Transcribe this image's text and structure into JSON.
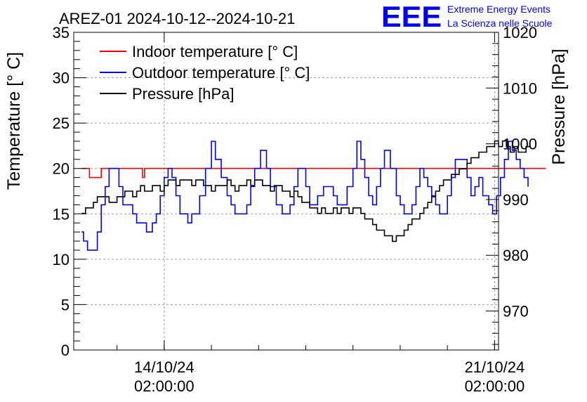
{
  "chart_data": {
    "type": "line",
    "title": "AREZ-01 2024-10-12--2024-10-21",
    "ylabel_left": "Temperature [° C]",
    "ylabel_right": "Pressure [hPa]",
    "x_range_hours": [
      0,
      216
    ],
    "x_ticks": [
      {
        "hours": 46,
        "date": "14/10/24",
        "time": "02:00:00"
      },
      {
        "hours": 214,
        "date": "21/10/24",
        "time": "02:00:00"
      }
    ],
    "ylim_left": [
      0,
      35
    ],
    "ylim_right": [
      963,
      1020
    ],
    "yticks_left": [
      "0",
      "5",
      "10",
      "15",
      "20",
      "25",
      "30",
      "35"
    ],
    "yticks_right": [
      "970",
      "980",
      "990",
      "1000",
      "1010",
      "1020"
    ],
    "grid": true,
    "legend": {
      "placement": "top-left",
      "entries": [
        {
          "label": "Indoor temperature [° C]",
          "color": "#ff0000"
        },
        {
          "label": "Outdoor temperature [° C]",
          "color": "#0000ff"
        },
        {
          "label": "Pressure [hPa]",
          "color": "#000000"
        }
      ]
    },
    "series": [
      {
        "name": "Indoor temperature [° C]",
        "axis": "left",
        "color": "#ff0000",
        "x": [
          4,
          7,
          8,
          13,
          14,
          15,
          34,
          35,
          36,
          37,
          240
        ],
        "values": [
          20,
          20,
          19,
          19,
          20,
          20,
          20,
          19,
          20,
          20,
          20
        ]
      },
      {
        "name": "Outdoor temperature [° C]",
        "axis": "left",
        "color": "#0000ff",
        "x": [
          4,
          5,
          7,
          10,
          12,
          14,
          16,
          18,
          21,
          23,
          25,
          30,
          32,
          34,
          36,
          37,
          40,
          42,
          44,
          46,
          48,
          50,
          52,
          54,
          56,
          58,
          60,
          62,
          64,
          67,
          70,
          72,
          75,
          78,
          80,
          82,
          85,
          88,
          90,
          92,
          95,
          98,
          100,
          103,
          106,
          108,
          110,
          112,
          114,
          116,
          118,
          120,
          122,
          124,
          127,
          130,
          132,
          134,
          136,
          139,
          142,
          144,
          146,
          148,
          150,
          152,
          154,
          156,
          158,
          161,
          164,
          166,
          168,
          170,
          172,
          174,
          176,
          178,
          180,
          182,
          184,
          186,
          188,
          190,
          192,
          194,
          196,
          198,
          200,
          202,
          204,
          206,
          208,
          211,
          213,
          215,
          217,
          219,
          221,
          223,
          225,
          227,
          229,
          231
        ],
        "values": [
          13,
          12,
          11,
          11,
          13,
          16,
          18,
          20,
          20,
          18,
          16,
          15,
          14,
          14,
          14,
          13,
          14,
          15,
          17,
          19,
          20,
          19,
          17,
          15,
          15,
          14,
          15,
          15,
          17,
          20,
          23,
          21,
          19,
          17,
          16,
          15,
          15,
          16,
          18,
          20,
          22,
          20,
          18,
          16,
          15,
          15,
          16,
          18,
          20,
          20,
          18,
          16,
          16,
          17,
          18,
          18,
          17,
          16,
          16,
          18,
          20,
          23,
          21,
          19,
          17,
          16,
          18,
          20,
          22,
          20,
          17,
          16,
          15,
          15,
          16,
          18,
          20,
          19,
          18,
          17,
          16,
          15,
          15,
          17,
          19,
          21,
          21,
          21,
          19,
          17,
          18,
          19,
          17,
          16,
          15,
          17,
          19,
          21,
          23,
          22,
          21,
          20,
          19,
          18
        ]
      },
      {
        "name": "Pressure [hPa]",
        "axis": "right",
        "color": "#000000",
        "x": [
          4,
          6,
          8,
          10,
          12,
          14,
          16,
          18,
          20,
          22,
          24,
          26,
          28,
          30,
          32,
          34,
          36,
          38,
          40,
          42,
          44,
          46,
          48,
          50,
          52,
          54,
          56,
          58,
          60,
          62,
          64,
          66,
          68,
          70,
          72,
          74,
          76,
          78,
          80,
          82,
          84,
          86,
          88,
          90,
          92,
          94,
          96,
          98,
          100,
          102,
          104,
          106,
          108,
          110,
          112,
          114,
          116,
          118,
          120,
          122,
          124,
          126,
          128,
          130,
          132,
          134,
          136,
          138,
          140,
          142,
          144,
          146,
          148,
          150,
          152,
          154,
          156,
          158,
          160,
          162,
          164,
          166,
          168,
          170,
          172,
          174,
          176,
          178,
          180,
          182,
          184,
          186,
          188,
          190,
          192,
          194,
          196,
          198,
          200,
          202,
          204,
          206,
          208,
          210,
          212,
          214,
          216,
          218,
          220,
          222,
          224,
          226,
          228,
          230,
          232
        ],
        "values": [
          987.5,
          988.5,
          988.5,
          989.5,
          990.5,
          990.5,
          990.5,
          989.5,
          989.5,
          990.5,
          990.5,
          991.5,
          991.5,
          990.5,
          991.5,
          992.5,
          991.5,
          991.5,
          992.5,
          992.5,
          991.5,
          992.5,
          993.5,
          993.5,
          992.5,
          993.5,
          993.5,
          993.5,
          992.5,
          993.5,
          993.5,
          992.5,
          992.5,
          991.5,
          992.5,
          992.5,
          992.5,
          993.5,
          992.5,
          991.5,
          992.5,
          992.5,
          993.5,
          992.5,
          993.5,
          993.5,
          992.5,
          992.5,
          991.5,
          992.5,
          992.5,
          991.5,
          991.5,
          990.5,
          991.5,
          990.5,
          989.5,
          989.5,
          988.5,
          988.5,
          987.5,
          988.5,
          987.5,
          987.5,
          988.5,
          987.5,
          988.5,
          988.5,
          987.5,
          988.5,
          988.5,
          987.5,
          986.5,
          986.5,
          985.5,
          984.5,
          984.5,
          983.5,
          983.5,
          982.5,
          983.5,
          983.5,
          984.5,
          985.5,
          986.5,
          986.5,
          987.5,
          988.5,
          989.5,
          990.5,
          991.5,
          992.5,
          993.5,
          993.5,
          994.5,
          994.5,
          995.5,
          995.5,
          996.5,
          997.5,
          997.5,
          998.5,
          998.5,
          999.5,
          999.5,
          1000.5,
          999.5,
          1000.5,
          999.5,
          998.5,
          999.5,
          998.5,
          998.5,
          999.5,
          1000.0
        ]
      }
    ]
  },
  "logo": {
    "text": "EEE",
    "line1": "Extreme Energy Events",
    "line2": "La Scienza nelle Scuole",
    "color": "#0000ff"
  }
}
